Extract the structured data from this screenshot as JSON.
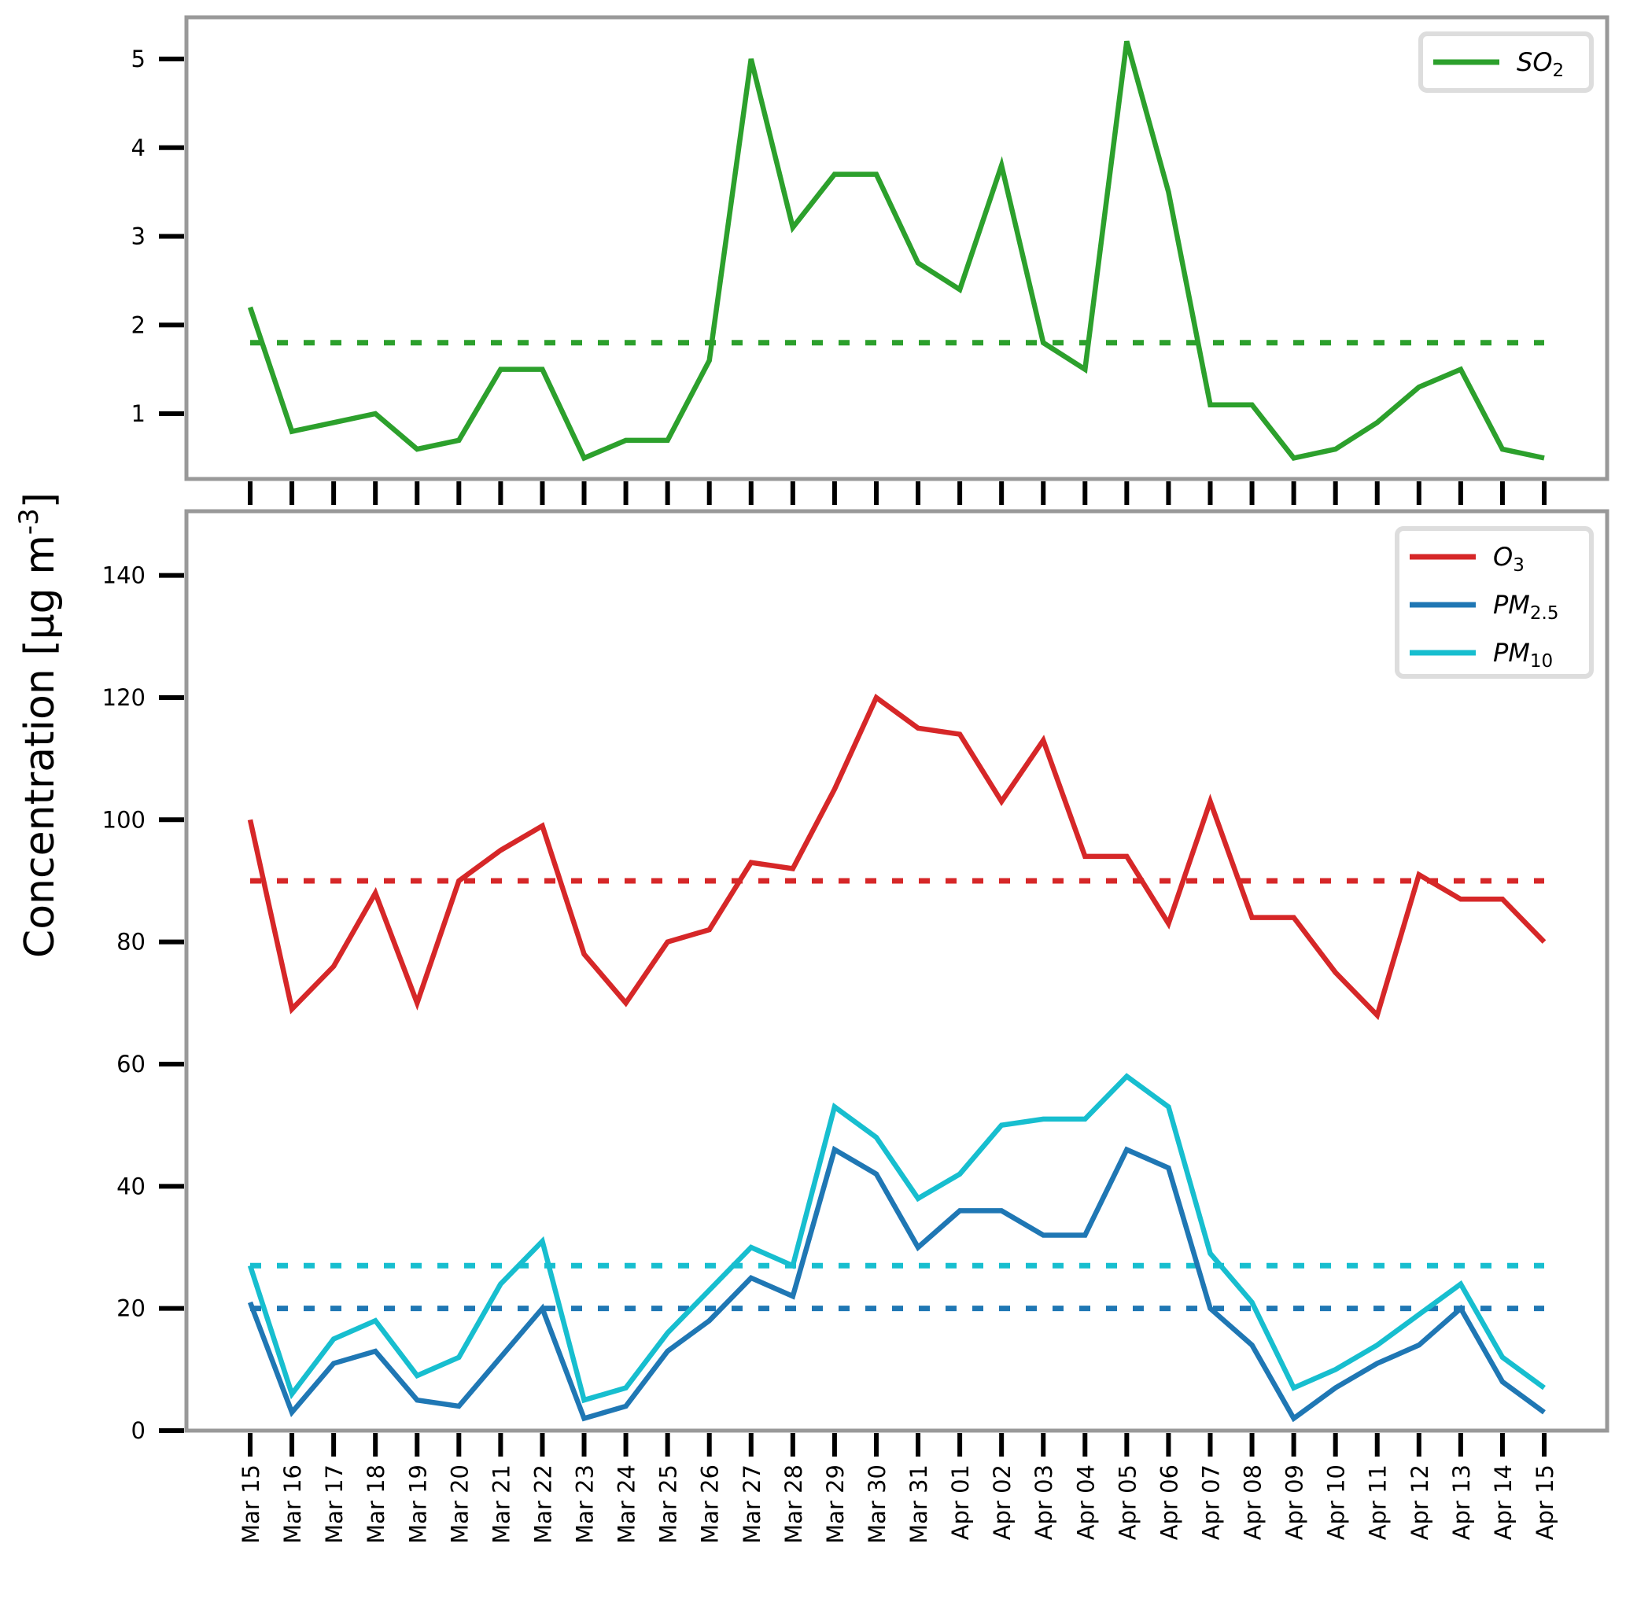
{
  "chart_data": [
    {
      "type": "line",
      "panel": "top",
      "x": [
        "Mar 15",
        "Mar 16",
        "Mar 17",
        "Mar 18",
        "Mar 19",
        "Mar 20",
        "Mar 21",
        "Mar 22",
        "Mar 23",
        "Mar 24",
        "Mar 25",
        "Mar 26",
        "Mar 27",
        "Mar 28",
        "Mar 29",
        "Mar 30",
        "Mar 31",
        "Apr 01",
        "Apr 02",
        "Apr 03",
        "Apr 04",
        "Apr 05",
        "Apr 06",
        "Apr 07",
        "Apr 08",
        "Apr 09",
        "Apr 10",
        "Apr 11",
        "Apr 12",
        "Apr 13",
        "Apr 14",
        "Apr 15"
      ],
      "ylim": [
        0.35,
        5.45
      ],
      "yticks": [
        1,
        2,
        3,
        4,
        5
      ],
      "grid": false,
      "legend": "top-right",
      "series": [
        {
          "name": "SO2",
          "label_main": "SO",
          "label_sub": "2",
          "color": "#2ca02c",
          "mean": 1.8,
          "values": [
            2.2,
            0.8,
            0.9,
            1.0,
            0.6,
            0.7,
            1.5,
            1.5,
            0.5,
            0.7,
            0.7,
            1.6,
            5.0,
            3.1,
            3.7,
            3.7,
            2.7,
            2.4,
            3.8,
            1.8,
            1.5,
            5.2,
            3.5,
            1.1,
            1.1,
            0.5,
            0.6,
            0.9,
            1.3,
            1.5,
            0.6,
            0.5
          ]
        }
      ]
    },
    {
      "type": "line",
      "panel": "bottom",
      "ylabel": "Concentration [μg m",
      "ylabel_sup": "-3",
      "ylabel_end": "]",
      "ylim": [
        0,
        150
      ],
      "yticks": [
        0,
        20,
        40,
        60,
        80,
        100,
        120,
        140
      ],
      "grid": false,
      "legend": "top-right",
      "series": [
        {
          "name": "O3",
          "label_main": "O",
          "label_sub": "3",
          "color": "#d62728",
          "mean": 90,
          "values": [
            100,
            69,
            76,
            88,
            70,
            90,
            95,
            99,
            78,
            70,
            80,
            82,
            93,
            92,
            105,
            120,
            115,
            114,
            103,
            113,
            94,
            94,
            83,
            103,
            84,
            84,
            75,
            68,
            91,
            87,
            87,
            80
          ]
        },
        {
          "name": "PM2.5",
          "label_main": "PM",
          "label_sub": "2.5",
          "color": "#1f77b4",
          "mean": 20,
          "values": [
            21,
            3,
            11,
            13,
            5,
            4,
            12,
            20,
            2,
            4,
            13,
            18,
            25,
            22,
            46,
            42,
            30,
            36,
            36,
            32,
            32,
            46,
            43,
            20,
            14,
            2,
            7,
            11,
            14,
            20,
            8,
            3
          ]
        },
        {
          "name": "PM10",
          "label_main": "PM",
          "label_sub": "10",
          "color": "#17becf",
          "mean": 27,
          "values": [
            27,
            6,
            15,
            18,
            9,
            12,
            24,
            31,
            5,
            7,
            16,
            23,
            30,
            27,
            53,
            48,
            38,
            42,
            50,
            51,
            51,
            58,
            53,
            29,
            21,
            7,
            10,
            14,
            19,
            24,
            12,
            7
          ]
        }
      ]
    }
  ]
}
